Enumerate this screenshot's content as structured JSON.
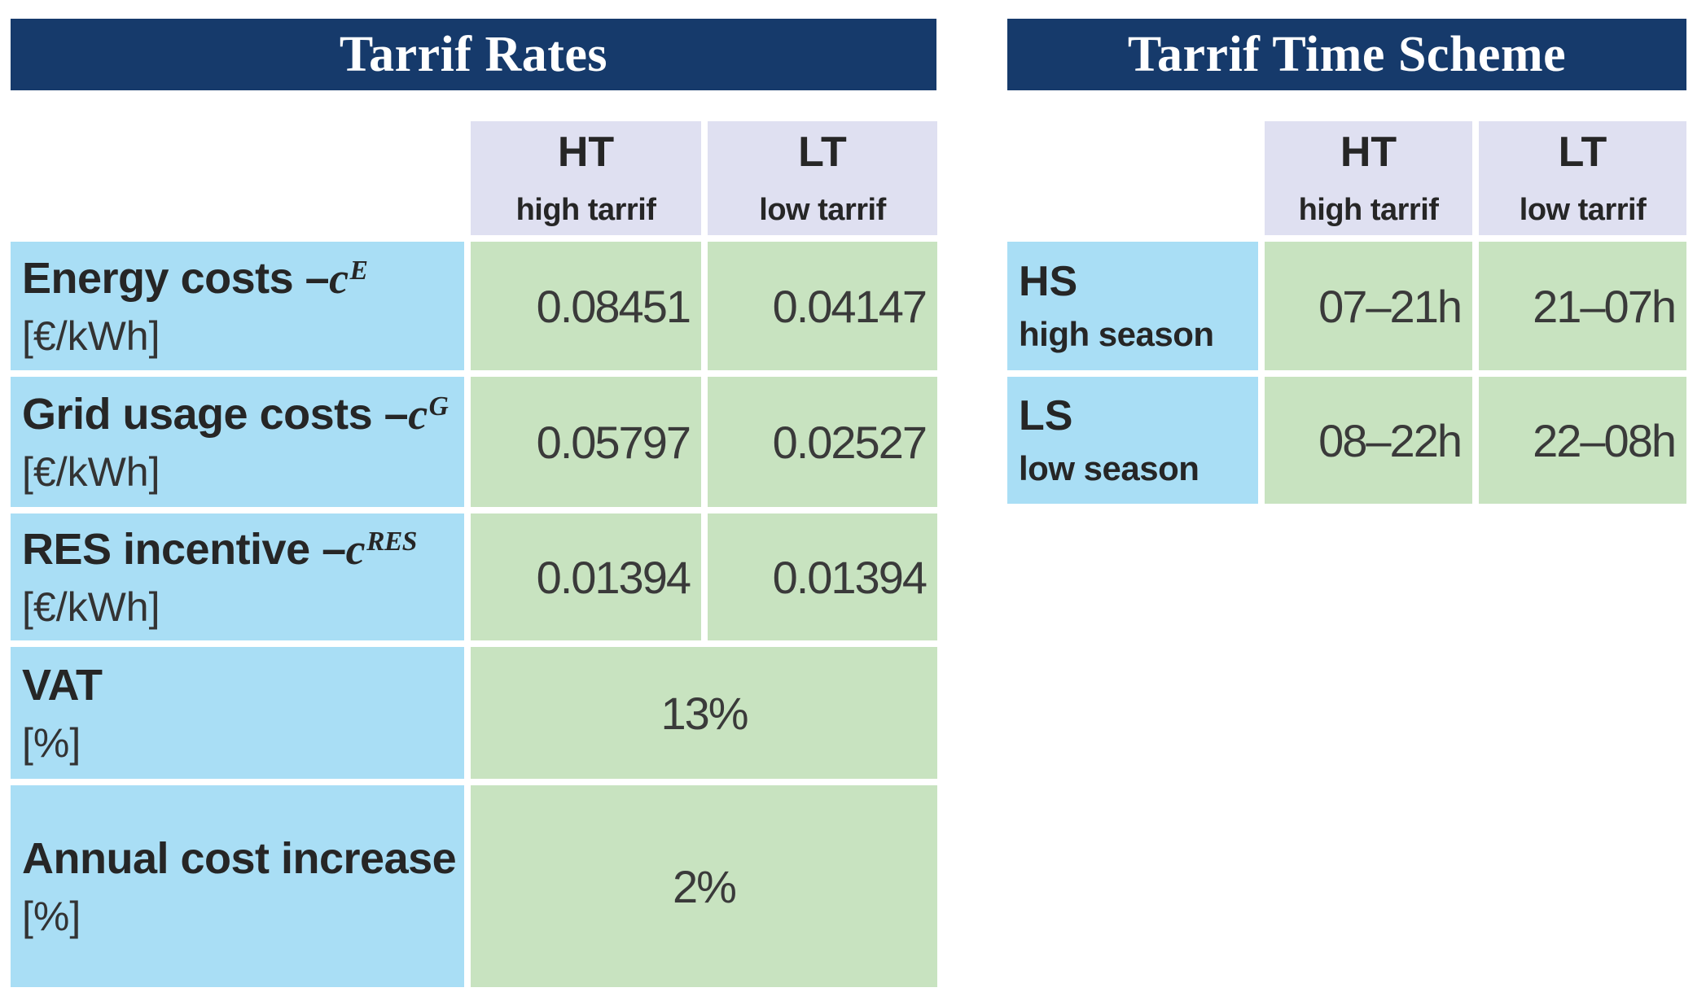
{
  "colors": {
    "navy": "#163a6b",
    "lavender": "#dfe0f1",
    "blue": "#a9def5",
    "green": "#c8e3c0",
    "ink": "#262626",
    "num": "#3a3a3a"
  },
  "rates_table": {
    "title": "Tarrif Rates",
    "columns": [
      {
        "abbr": "HT",
        "name": "high tarrif"
      },
      {
        "abbr": "LT",
        "name": "low tarrif"
      }
    ],
    "rows": [
      {
        "prefix": "Energy costs –",
        "sym": "c",
        "sup": "E",
        "unit": "[€/kWh]",
        "ht": "0.08451",
        "lt": "0.04147"
      },
      {
        "prefix": "Grid usage costs –",
        "sym": "c",
        "sup": "G",
        "unit": "[€/kWh]",
        "ht": "0.05797",
        "lt": "0.02527"
      },
      {
        "prefix": "RES incentive –",
        "sym": "c",
        "sup": "RES",
        "unit": "[€/kWh]",
        "ht": "0.01394",
        "lt": "0.01394"
      },
      {
        "prefix": "VAT",
        "unit": "[%]",
        "value": "13%"
      },
      {
        "prefix": "Annual cost increase",
        "unit": "[%]",
        "value": "2%"
      }
    ]
  },
  "time_table": {
    "title": "Tarrif Time Scheme",
    "columns": [
      {
        "abbr": "HT",
        "name": "high tarrif"
      },
      {
        "abbr": "LT",
        "name": "low tarrif"
      }
    ],
    "rows": [
      {
        "abbr": "HS",
        "name": "high season",
        "ht": "07–21h",
        "lt": "21–07h"
      },
      {
        "abbr": "LS",
        "name": "low season",
        "ht": "08–22h",
        "lt": "22–08h"
      }
    ]
  }
}
